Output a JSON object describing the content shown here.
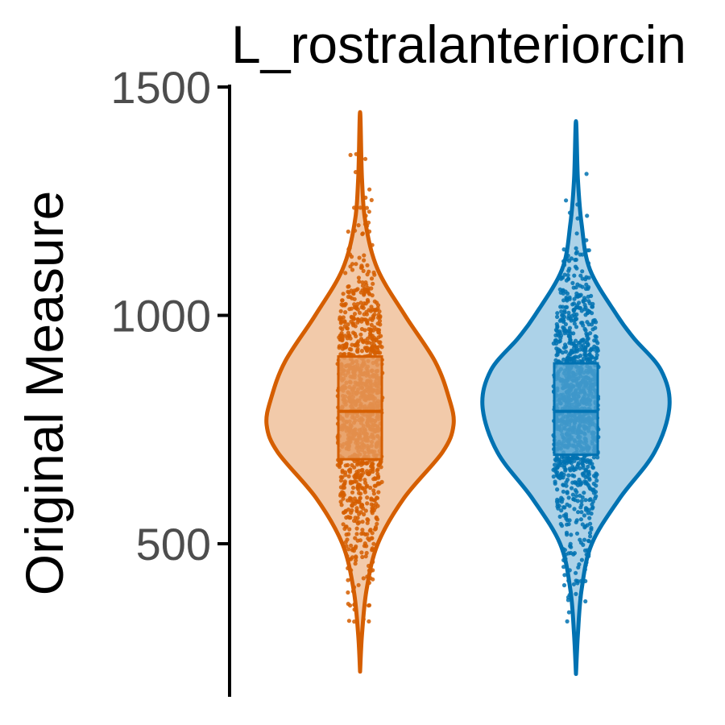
{
  "chart_data": {
    "type": "violin",
    "title": "L_rostralanteriorcin",
    "ylabel": "Original Measure",
    "xlabel": "",
    "ylim": [
      195,
      1505
    ],
    "yticks": [
      500,
      1000,
      1500
    ],
    "grid": false,
    "legend": "none",
    "series": [
      {
        "color": "#D55E00",
        "fill": "#F2CAAA",
        "box_fill": "#E69A5E",
        "min": 220,
        "max": 1445,
        "q1": 685,
        "median": 790,
        "q3": 910,
        "density": [
          [
            220,
            0.0
          ],
          [
            300,
            0.02
          ],
          [
            400,
            0.07
          ],
          [
            500,
            0.19
          ],
          [
            600,
            0.47
          ],
          [
            700,
            0.88
          ],
          [
            760,
            1.0
          ],
          [
            820,
            0.95
          ],
          [
            900,
            0.8
          ],
          [
            1000,
            0.48
          ],
          [
            1100,
            0.19
          ],
          [
            1200,
            0.06
          ],
          [
            1300,
            0.02
          ],
          [
            1445,
            0.0
          ]
        ]
      },
      {
        "color": "#0072B2",
        "fill": "#ACD2E8",
        "box_fill": "#4DA0CF",
        "min": 215,
        "max": 1425,
        "q1": 695,
        "median": 790,
        "q3": 895,
        "density": [
          [
            215,
            0.0
          ],
          [
            300,
            0.02
          ],
          [
            400,
            0.06
          ],
          [
            500,
            0.17
          ],
          [
            600,
            0.47
          ],
          [
            700,
            0.84
          ],
          [
            800,
            1.0
          ],
          [
            880,
            0.91
          ],
          [
            950,
            0.62
          ],
          [
            1000,
            0.44
          ],
          [
            1100,
            0.15
          ],
          [
            1200,
            0.06
          ],
          [
            1300,
            0.02
          ],
          [
            1425,
            0.0
          ]
        ]
      }
    ]
  }
}
